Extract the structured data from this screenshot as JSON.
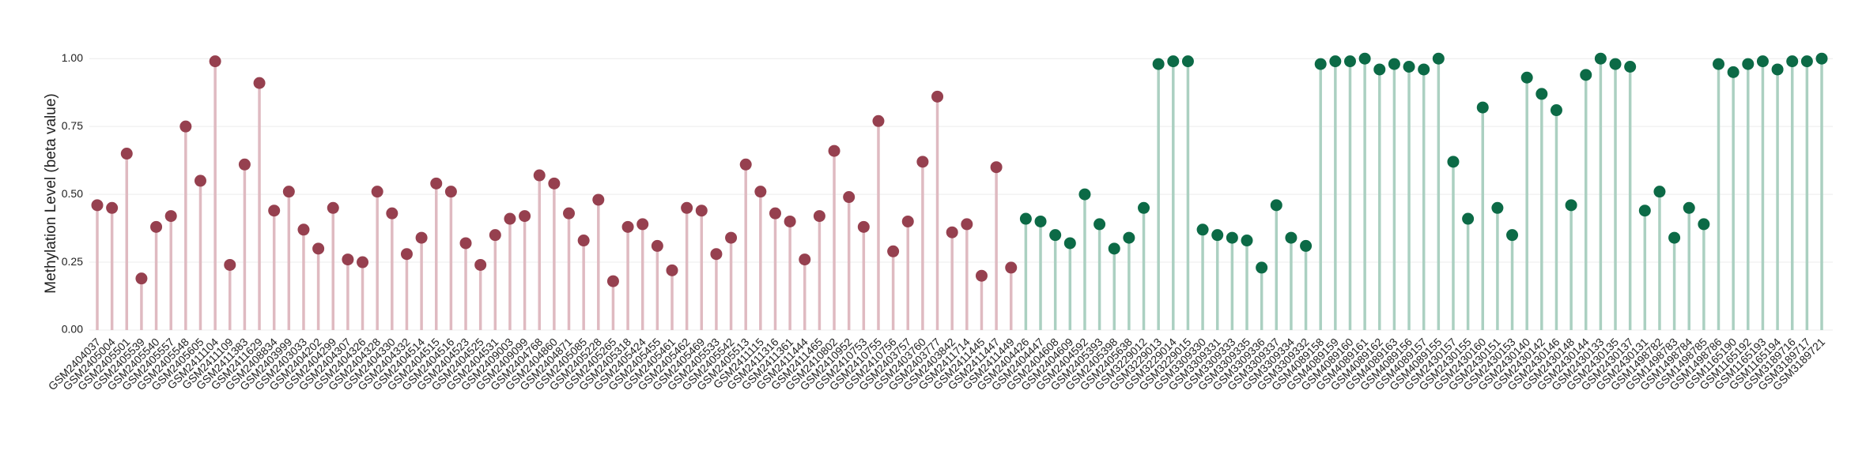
{
  "chart_data": {
    "type": "lollipop",
    "y_label": "Methylation Level (beta value)",
    "ylim": [
      0,
      1.05
    ],
    "yticks": [
      {
        "value": 0,
        "label": "0.00"
      },
      0.25,
      {
        "value": 0.5,
        "label": "0.50"
      },
      0.75,
      {
        "value": 1,
        "label": "1.00"
      }
    ],
    "grid": true,
    "series": [
      {
        "color": "#96404f",
        "stem_color": "#dfbac1",
        "categories": [
          "GSM2404037",
          "GSM2405004",
          "GSM2405501",
          "GSM2405539",
          "GSM2405540",
          "GSM2405557",
          "GSM2405548",
          "GSM2405605",
          "GSM2411104",
          "GSM2411109",
          "GSM2411383",
          "GSM2411629",
          "GSM2408834",
          "GSM2403999",
          "GSM2403033",
          "GSM2404202",
          "GSM2404299",
          "GSM2404307",
          "GSM2404326",
          "GSM2404328",
          "GSM2404330",
          "GSM2404332",
          "GSM2404514",
          "GSM2404515",
          "GSM2404516",
          "GSM2404523",
          "GSM2404525",
          "GSM2404531",
          "GSM2409003",
          "GSM2409099",
          "GSM2404768",
          "GSM2404860",
          "GSM2404871",
          "GSM2405085",
          "GSM2405228",
          "GSM2405265",
          "GSM2405318",
          "GSM2405424",
          "GSM2405455",
          "GSM2405461",
          "GSM2405462",
          "GSM2405469",
          "GSM2405533",
          "GSM2405542",
          "GSM2405513",
          "GSM2411115",
          "GSM2411316",
          "GSM2411361",
          "GSM2411444",
          "GSM2411465",
          "GSM2410802",
          "GSM2410952",
          "GSM2410753",
          "GSM2410755",
          "GSM2410756",
          "GSM2403757",
          "GSM2403760",
          "GSM2403777",
          "GSM2403842",
          "GSM2411714",
          "GSM2411445",
          "GSM2411447",
          "GSM2411449"
        ],
        "values": [
          0.46,
          0.45,
          0.65,
          0.19,
          0.38,
          0.42,
          0.75,
          0.55,
          0.99,
          0.24,
          0.61,
          0.91,
          0.44,
          0.51,
          0.37,
          0.3,
          0.45,
          0.26,
          0.25,
          0.51,
          0.43,
          0.28,
          0.34,
          0.54,
          0.51,
          0.32,
          0.24,
          0.35,
          0.41,
          0.42,
          0.57,
          0.54,
          0.43,
          0.33,
          0.48,
          0.18,
          0.38,
          0.39,
          0.31,
          0.22,
          0.45,
          0.44,
          0.28,
          0.34,
          0.61,
          0.51,
          0.43,
          0.4,
          0.26,
          0.42,
          0.66,
          0.49,
          0.38,
          0.77,
          0.29,
          0.4,
          0.62,
          0.86,
          0.36,
          0.39,
          0.2,
          0.6,
          0.23
        ]
      },
      {
        "color": "#0c6a46",
        "stem_color": "#abd0c1",
        "categories": [
          "GSM2404426",
          "GSM2404447",
          "GSM2404608",
          "GSM2404609",
          "GSM2404592",
          "GSM2405393",
          "GSM2405398",
          "GSM2405638",
          "GSM3229012",
          "GSM3229013",
          "GSM3229014",
          "GSM3229015",
          "GSM3309330",
          "GSM3309331",
          "GSM3309333",
          "GSM3309335",
          "GSM3309336",
          "GSM3309337",
          "GSM3309334",
          "GSM3309332",
          "GSM4089158",
          "GSM4089159",
          "GSM4089160",
          "GSM4089161",
          "GSM4089162",
          "GSM4089163",
          "GSM4089156",
          "GSM4089157",
          "GSM4089155",
          "GSM2430157",
          "GSM2430155",
          "GSM2430160",
          "GSM2430151",
          "GSM2430153",
          "GSM2430140",
          "GSM2430142",
          "GSM2430146",
          "GSM2430148",
          "GSM2430144",
          "GSM2430133",
          "GSM2430135",
          "GSM2430137",
          "GSM2430131",
          "GSM1498782",
          "GSM1498783",
          "GSM1498784",
          "GSM1498785",
          "GSM1498786",
          "GSM1165190",
          "GSM1165192",
          "GSM1165193",
          "GSM1165194",
          "GSM3189716",
          "GSM3189717",
          "GSM3189721"
        ],
        "values": [
          0.41,
          0.4,
          0.35,
          0.32,
          0.5,
          0.39,
          0.3,
          0.34,
          0.45,
          0.98,
          0.99,
          0.99,
          0.37,
          0.35,
          0.34,
          0.33,
          0.23,
          0.46,
          0.34,
          0.31,
          0.98,
          0.99,
          0.99,
          1.0,
          0.96,
          0.98,
          0.97,
          0.96,
          1.0,
          0.62,
          0.41,
          0.82,
          0.45,
          0.35,
          0.93,
          0.87,
          0.81,
          0.46,
          0.94,
          1.0,
          0.98,
          0.97,
          0.44,
          0.51,
          0.34,
          0.45,
          0.39,
          0.98,
          0.95,
          0.98,
          0.99,
          0.96,
          0.99,
          0.99,
          1.0
        ]
      }
    ]
  }
}
